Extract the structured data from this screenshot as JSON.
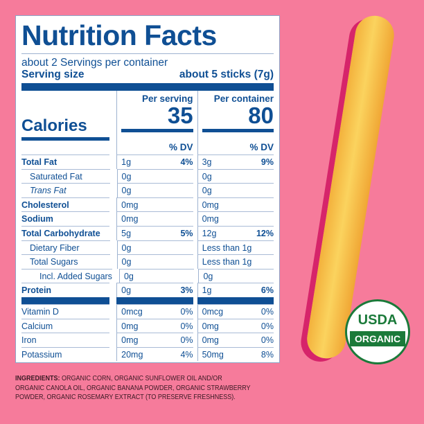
{
  "title": "Nutrition Facts",
  "servings": "about 2 Servings per container",
  "serving_size_label": "Serving size",
  "serving_size_value": "about 5 sticks (7g)",
  "calories_label": "Calories",
  "per_serving_label": "Per serving",
  "per_container_label": "Per container",
  "calories_serving": "35",
  "calories_container": "80",
  "dv_label": "% DV",
  "rows": [
    {
      "name": "Total Fat",
      "s": "1g",
      "sdv": "4%",
      "c": "3g",
      "cdv": "9%",
      "bold": true
    },
    {
      "name": "Saturated Fat",
      "s": "0g",
      "sdv": "",
      "c": "0g",
      "cdv": "",
      "indent": true
    },
    {
      "name": "Trans Fat",
      "s": "0g",
      "sdv": "",
      "c": "0g",
      "cdv": "",
      "indent": true
    },
    {
      "name": "Cholesterol",
      "s": "0mg",
      "sdv": "",
      "c": "0mg",
      "cdv": "",
      "bold": true
    },
    {
      "name": "Sodium",
      "s": "0mg",
      "sdv": "",
      "c": "0mg",
      "cdv": "",
      "bold": true
    },
    {
      "name": "Total Carbohydrate",
      "s": "5g",
      "sdv": "5%",
      "c": "12g",
      "cdv": "12%",
      "bold": true
    },
    {
      "name": "Dietary Fiber",
      "s": "0g",
      "sdv": "",
      "c": "Less than 1g",
      "cdv": "",
      "indent": true
    },
    {
      "name": "Total Sugars",
      "s": "0g",
      "sdv": "",
      "c": "Less than 1g",
      "cdv": "",
      "indent": true
    },
    {
      "name": "Incl. Added Sugars",
      "s": "0g",
      "sdv": "",
      "c": "0g",
      "cdv": "",
      "indent2": true
    },
    {
      "name": "Protein",
      "s": "0g",
      "sdv": "3%",
      "c": "1g",
      "cdv": "6%",
      "bold": true
    }
  ],
  "vitamins": [
    {
      "name": "Vitamin D",
      "s": "0mcg",
      "sdv": "0%",
      "c": "0mcg",
      "cdv": "0%"
    },
    {
      "name": "Calcium",
      "s": "0mg",
      "sdv": "0%",
      "c": "0mg",
      "cdv": "0%"
    },
    {
      "name": "Iron",
      "s": "0mg",
      "sdv": "0%",
      "c": "0mg",
      "cdv": "0%"
    },
    {
      "name": "Potassium",
      "s": "20mg",
      "sdv": "4%",
      "c": "50mg",
      "cdv": "8%"
    }
  ],
  "ingredients_label": "INGREDIENTS:",
  "ingredients": " ORGANIC CORN, ORGANIC SUNFLOWER OIL AND/OR ORGANIC CANOLA OIL, ORGANIC BANANA POWDER, ORGANIC STRAWBERRY POWDER, ORGANIC ROSEMARY EXTRACT (TO PRESERVE FRESHNESS).",
  "seal": {
    "top": "USDA",
    "bottom": "ORGANIC"
  },
  "colors": {
    "background": "#f67b9b",
    "label_blue": "#0f4f94",
    "seal_green": "#1b7a3a"
  }
}
